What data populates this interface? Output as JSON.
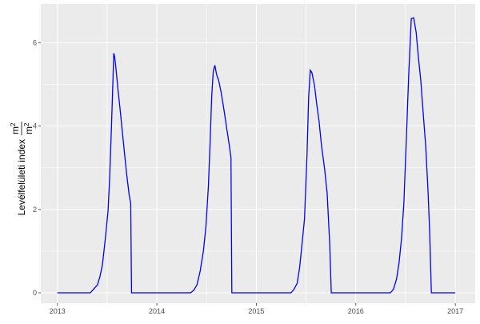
{
  "chart_data": {
    "type": "line",
    "title": "",
    "xlabel": "",
    "ylabel": {
      "text": "Levélfelületi index",
      "unit_numerator": "m",
      "unit_numerator_exp": "2",
      "unit_denominator": "m",
      "unit_denominator_exp": "2"
    },
    "x_ticks": [
      "2013",
      "2014",
      "2015",
      "2016",
      "2017"
    ],
    "y_ticks": [
      "0",
      "2",
      "4",
      "6"
    ],
    "xlim": [
      "2012-11-01",
      "2017-03-15"
    ],
    "ylim": [
      -0.25,
      6.93
    ],
    "grid": true,
    "line_color": "#0000FF",
    "panel_background": "#EBEBEB",
    "points": [
      [
        "2013-01-01",
        0
      ],
      [
        "2013-05-02",
        0
      ],
      [
        "2013-05-13",
        0.08
      ],
      [
        "2013-05-28",
        0.19
      ],
      [
        "2013-06-06",
        0.39
      ],
      [
        "2013-06-15",
        0.66
      ],
      [
        "2013-06-21",
        1.01
      ],
      [
        "2013-06-27",
        1.36
      ],
      [
        "2013-07-06",
        1.98
      ],
      [
        "2013-07-12",
        2.76
      ],
      [
        "2013-07-18",
        3.92
      ],
      [
        "2013-07-24",
        5.09
      ],
      [
        "2013-07-27",
        5.75
      ],
      [
        "2013-07-30",
        5.67
      ],
      [
        "2013-08-05",
        5.32
      ],
      [
        "2013-08-11",
        4.89
      ],
      [
        "2013-08-19",
        4.41
      ],
      [
        "2013-08-28",
        3.83
      ],
      [
        "2013-09-06",
        3.24
      ],
      [
        "2013-09-12",
        2.85
      ],
      [
        "2013-09-21",
        2.37
      ],
      [
        "2013-09-27",
        2.14
      ],
      [
        "2013-09-30",
        0
      ],
      [
        "2014-05-05",
        0
      ],
      [
        "2014-05-16",
        0.06
      ],
      [
        "2014-05-28",
        0.19
      ],
      [
        "2014-06-09",
        0.52
      ],
      [
        "2014-06-21",
        1.01
      ],
      [
        "2014-06-30",
        1.59
      ],
      [
        "2014-07-09",
        2.56
      ],
      [
        "2014-07-15",
        3.53
      ],
      [
        "2014-07-21",
        4.7
      ],
      [
        "2014-07-27",
        5.32
      ],
      [
        "2014-08-02",
        5.46
      ],
      [
        "2014-08-08",
        5.24
      ],
      [
        "2014-08-16",
        5.09
      ],
      [
        "2014-08-25",
        4.8
      ],
      [
        "2014-09-06",
        4.31
      ],
      [
        "2014-09-15",
        3.92
      ],
      [
        "2014-09-24",
        3.53
      ],
      [
        "2014-09-30",
        3.24
      ],
      [
        "2014-10-03",
        0
      ],
      [
        "2015-05-08",
        0
      ],
      [
        "2015-05-19",
        0.08
      ],
      [
        "2015-05-31",
        0.23
      ],
      [
        "2015-06-09",
        0.62
      ],
      [
        "2015-06-18",
        1.2
      ],
      [
        "2015-06-27",
        1.79
      ],
      [
        "2015-07-06",
        3.34
      ],
      [
        "2015-07-12",
        4.7
      ],
      [
        "2015-07-18",
        5.34
      ],
      [
        "2015-07-24",
        5.28
      ],
      [
        "2015-08-02",
        4.99
      ],
      [
        "2015-08-11",
        4.5
      ],
      [
        "2015-08-19",
        4.12
      ],
      [
        "2015-08-28",
        3.53
      ],
      [
        "2015-09-09",
        2.95
      ],
      [
        "2015-09-18",
        2.37
      ],
      [
        "2015-09-21",
        1.98
      ],
      [
        "2015-09-27",
        1.2
      ],
      [
        "2015-10-03",
        0
      ],
      [
        "2016-05-07",
        0
      ],
      [
        "2016-05-18",
        0.08
      ],
      [
        "2016-05-30",
        0.33
      ],
      [
        "2016-06-08",
        0.72
      ],
      [
        "2016-06-17",
        1.3
      ],
      [
        "2016-06-26",
        2.17
      ],
      [
        "2016-07-05",
        3.73
      ],
      [
        "2016-07-14",
        5.28
      ],
      [
        "2016-07-23",
        6.58
      ],
      [
        "2016-08-01",
        6.6
      ],
      [
        "2016-08-10",
        6.25
      ],
      [
        "2016-08-18",
        5.67
      ],
      [
        "2016-08-27",
        5.09
      ],
      [
        "2016-09-05",
        4.31
      ],
      [
        "2016-09-14",
        3.53
      ],
      [
        "2016-09-23",
        2.37
      ],
      [
        "2016-09-29",
        1.4
      ],
      [
        "2016-10-05",
        0
      ],
      [
        "2017-01-01",
        0
      ]
    ]
  }
}
